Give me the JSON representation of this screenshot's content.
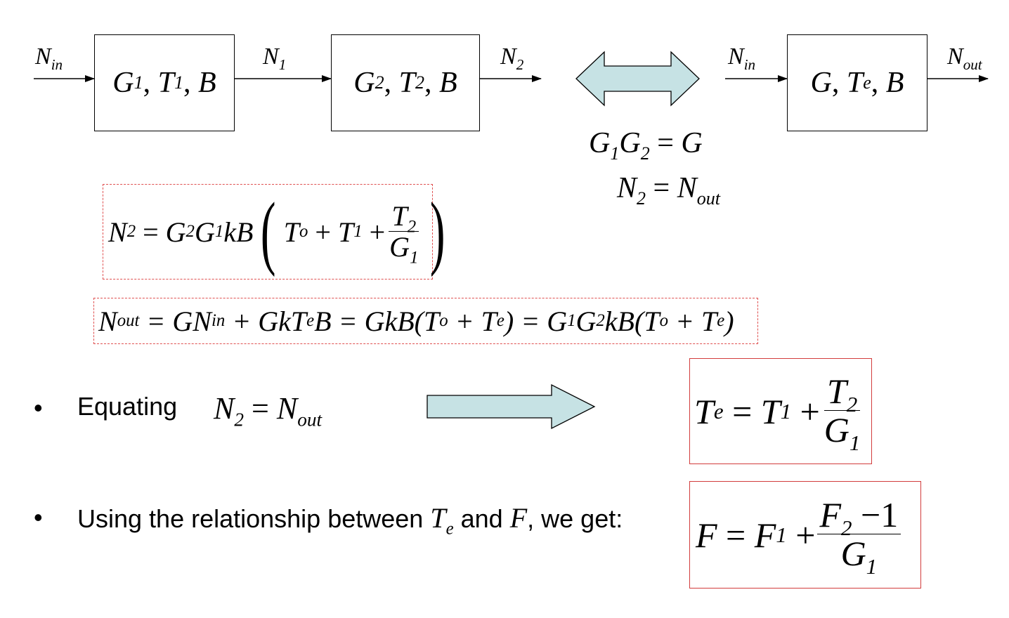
{
  "diagram": {
    "block1": {
      "g": "G",
      "g_sub": "1",
      "t": "T",
      "t_sub": "1",
      "b": "B"
    },
    "block2": {
      "g": "G",
      "g_sub": "2",
      "t": "T",
      "t_sub": "2",
      "b": "B"
    },
    "block_eq": {
      "g": "G",
      "t": "T",
      "t_sub": "e",
      "b": "B"
    },
    "signals": {
      "n_in_left": {
        "base": "N",
        "sub": "in"
      },
      "n1": {
        "base": "N",
        "sub": "1"
      },
      "n2": {
        "base": "N",
        "sub": "2"
      },
      "n_in_right": {
        "base": "N",
        "sub": "in"
      },
      "n_out": {
        "base": "N",
        "sub": "out"
      }
    },
    "equivalence": {
      "line1": {
        "lhs": "G",
        "lhs_sub1": "1",
        "lhs2": "G",
        "lhs_sub2": "2",
        "op": "=",
        "rhs": "G"
      },
      "line2": {
        "lhs": "N",
        "lhs_sub": "2",
        "op": "=",
        "rhs": "N",
        "rhs_sub": "out"
      }
    }
  },
  "equations": {
    "eq1": {
      "N": "N",
      "N_sub": "2",
      "eq": "=",
      "G2": "G",
      "G2_sub": "2",
      "G1": "G",
      "G1_sub": "1",
      "kB": "kB",
      "To": "T",
      "To_sub": "o",
      "plus": "+",
      "T1": "T",
      "T1_sub": "1",
      "num": "T",
      "num_sub": "2",
      "den": "G",
      "den_sub": "1"
    },
    "eq2": {
      "p1": "N",
      "p1_sub": "out",
      "p2": "= GN",
      "p2_sub": "in",
      "p3": "+ GkT",
      "p3_sub": "e",
      "p4": "B = GkB(T",
      "p4_sub": "o",
      "p5": "+ T",
      "p5_sub": "e",
      "p6": ") = G",
      "p6_sub": "1",
      "p7": "G",
      "p7_sub": "2",
      "p8": "kB(T",
      "p8_sub": "o",
      "p9": "+ T",
      "p9_sub": "e",
      "p10": ")"
    }
  },
  "bullets": [
    {
      "bullet": "•",
      "text": "Equating",
      "math": {
        "lhs": "N",
        "lhs_sub": "2",
        "op": "=",
        "rhs": "N",
        "rhs_sub": "out"
      }
    },
    {
      "bullet": "•",
      "text_before": "Using the relationship between",
      "var1": "T",
      "var1_sub": "e",
      "text_mid": "and",
      "var2": "F",
      "text_after": ", we get:"
    }
  ],
  "results": {
    "te": {
      "lhs": "T",
      "lhs_sub": "e",
      "eq": "=",
      "t1": "T",
      "t1_sub": "1",
      "plus": "+",
      "num": "T",
      "num_sub": "2",
      "den": "G",
      "den_sub": "1"
    },
    "f": {
      "lhs": "F",
      "eq": "=",
      "f1": "F",
      "f1_sub": "1",
      "plus": "+",
      "num": "F",
      "num_sub": "2",
      "num_rest": "−1",
      "den": "G",
      "den_sub": "1"
    }
  },
  "colors": {
    "arrow_fill": "#c6e2e4",
    "dash_red": "#e05050",
    "box_red": "#d23c3c"
  }
}
